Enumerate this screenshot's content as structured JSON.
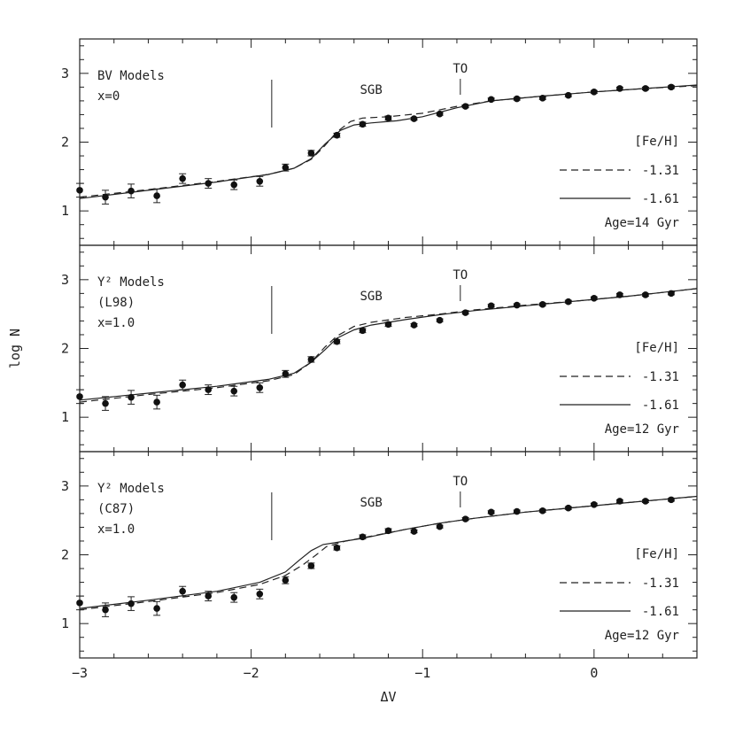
{
  "chart_data": {
    "type": "scatter",
    "xlabel": "ΔV",
    "ylabel": "log N",
    "xlim": [
      -3,
      0.6
    ],
    "ylim": [
      0.5,
      3.5
    ],
    "x_ticks": [
      "-3",
      "-2",
      "-1",
      "0"
    ],
    "y_ticks": [
      "1",
      "2",
      "3"
    ],
    "grid": false,
    "legend_title": "[Fe/H]",
    "panels": [
      {
        "model_lines": [
          "BV Models",
          "x=0"
        ],
        "sgb_label": "SGB",
        "to_label": "TO",
        "sgb_marker_x": -1.88,
        "to_marker_x": -0.78,
        "age_label": "Age=14 Gyr",
        "observed": {
          "x": [
            -3.0,
            -2.85,
            -2.7,
            -2.55,
            -2.4,
            -2.25,
            -2.1,
            -1.95,
            -1.8,
            -1.65,
            -1.5,
            -1.35,
            -1.2,
            -1.05,
            -0.9,
            -0.75,
            -0.6,
            -0.45,
            -0.3,
            -0.15,
            0.0,
            0.15,
            0.3,
            0.45
          ],
          "y": [
            1.3,
            1.2,
            1.29,
            1.22,
            1.47,
            1.4,
            1.38,
            1.43,
            1.63,
            1.84,
            2.1,
            2.26,
            2.35,
            2.34,
            2.41,
            2.52,
            2.62,
            2.63,
            2.64,
            2.68,
            2.73,
            2.78,
            2.78,
            2.8
          ],
          "yerr": [
            0.1,
            0.1,
            0.1,
            0.1,
            0.07,
            0.07,
            0.07,
            0.07,
            0.05,
            0.04,
            0.03,
            0.03,
            0.03,
            0.02,
            0.02,
            0.02,
            0.02,
            0.02,
            0.02,
            0.02,
            0.02,
            0.02,
            0.02,
            0.02
          ]
        },
        "series": [
          {
            "name": "-1.31",
            "style": "dashed",
            "x": [
              -3.0,
              -2.6,
              -2.2,
              -1.9,
              -1.75,
              -1.65,
              -1.58,
              -1.5,
              -1.42,
              -1.35,
              -1.2,
              -1.0,
              -0.8,
              -0.6,
              -0.3,
              0.0,
              0.3,
              0.6
            ],
            "y": [
              1.2,
              1.31,
              1.43,
              1.53,
              1.62,
              1.75,
              1.92,
              2.15,
              2.3,
              2.35,
              2.37,
              2.42,
              2.52,
              2.6,
              2.67,
              2.73,
              2.78,
              2.82
            ]
          },
          {
            "name": "-1.61",
            "style": "solid",
            "x": [
              -3.0,
              -2.6,
              -2.2,
              -1.9,
              -1.75,
              -1.65,
              -1.57,
              -1.48,
              -1.4,
              -1.3,
              -1.15,
              -1.0,
              -0.8,
              -0.6,
              -0.3,
              0.0,
              0.3,
              0.6
            ],
            "y": [
              1.18,
              1.3,
              1.42,
              1.53,
              1.62,
              1.76,
              1.97,
              2.17,
              2.25,
              2.28,
              2.31,
              2.37,
              2.5,
              2.6,
              2.67,
              2.73,
              2.78,
              2.83
            ]
          }
        ]
      },
      {
        "model_lines": [
          "Y² Models",
          "(L98)",
          "x=1.0"
        ],
        "sgb_label": "SGB",
        "to_label": "TO",
        "sgb_marker_x": -1.88,
        "to_marker_x": -0.78,
        "age_label": "Age=12 Gyr",
        "observed": {
          "x": [
            -3.0,
            -2.85,
            -2.7,
            -2.55,
            -2.4,
            -2.25,
            -2.1,
            -1.95,
            -1.8,
            -1.65,
            -1.5,
            -1.35,
            -1.2,
            -1.05,
            -0.9,
            -0.75,
            -0.6,
            -0.45,
            -0.3,
            -0.15,
            0.0,
            0.15,
            0.3,
            0.45
          ],
          "y": [
            1.3,
            1.2,
            1.29,
            1.22,
            1.47,
            1.4,
            1.38,
            1.43,
            1.63,
            1.84,
            2.1,
            2.26,
            2.35,
            2.34,
            2.41,
            2.52,
            2.62,
            2.63,
            2.64,
            2.68,
            2.73,
            2.78,
            2.78,
            2.8
          ],
          "yerr": [
            0.1,
            0.1,
            0.1,
            0.1,
            0.07,
            0.07,
            0.07,
            0.07,
            0.05,
            0.04,
            0.03,
            0.03,
            0.03,
            0.02,
            0.02,
            0.02,
            0.02,
            0.02,
            0.02,
            0.02,
            0.02,
            0.02,
            0.02,
            0.02
          ]
        },
        "series": [
          {
            "name": "-1.31",
            "style": "dashed",
            "x": [
              -3.0,
              -2.6,
              -2.2,
              -1.9,
              -1.75,
              -1.65,
              -1.57,
              -1.5,
              -1.4,
              -1.3,
              -1.1,
              -0.9,
              -0.7,
              -0.4,
              -0.1,
              0.2,
              0.6
            ],
            "y": [
              1.22,
              1.33,
              1.43,
              1.53,
              1.62,
              1.8,
              2.02,
              2.18,
              2.32,
              2.38,
              2.45,
              2.5,
              2.56,
              2.63,
              2.69,
              2.76,
              2.87
            ]
          },
          {
            "name": "-1.61",
            "style": "solid",
            "x": [
              -3.0,
              -2.6,
              -2.2,
              -1.9,
              -1.75,
              -1.65,
              -1.57,
              -1.5,
              -1.4,
              -1.3,
              -1.1,
              -0.9,
              -0.7,
              -0.4,
              -0.1,
              0.2,
              0.6
            ],
            "y": [
              1.25,
              1.35,
              1.45,
              1.55,
              1.64,
              1.8,
              1.98,
              2.15,
              2.27,
              2.34,
              2.42,
              2.49,
              2.55,
              2.62,
              2.69,
              2.76,
              2.87
            ]
          }
        ]
      },
      {
        "model_lines": [
          "Y² Models",
          "(C87)",
          "x=1.0"
        ],
        "sgb_label": "SGB",
        "to_label": "TO",
        "sgb_marker_x": -1.88,
        "to_marker_x": -0.78,
        "age_label": "Age=12 Gyr",
        "observed": {
          "x": [
            -3.0,
            -2.85,
            -2.7,
            -2.55,
            -2.4,
            -2.25,
            -2.1,
            -1.95,
            -1.8,
            -1.65,
            -1.5,
            -1.35,
            -1.2,
            -1.05,
            -0.9,
            -0.75,
            -0.6,
            -0.45,
            -0.3,
            -0.15,
            0.0,
            0.15,
            0.3,
            0.45
          ],
          "y": [
            1.3,
            1.2,
            1.29,
            1.22,
            1.47,
            1.4,
            1.38,
            1.43,
            1.63,
            1.84,
            2.1,
            2.26,
            2.35,
            2.34,
            2.41,
            2.52,
            2.62,
            2.63,
            2.64,
            2.68,
            2.73,
            2.78,
            2.78,
            2.8
          ],
          "yerr": [
            0.1,
            0.1,
            0.1,
            0.1,
            0.07,
            0.07,
            0.07,
            0.07,
            0.05,
            0.04,
            0.03,
            0.03,
            0.03,
            0.02,
            0.02,
            0.02,
            0.02,
            0.02,
            0.02,
            0.02,
            0.02,
            0.02,
            0.02,
            0.02
          ]
        },
        "series": [
          {
            "name": "-1.31",
            "style": "dashed",
            "x": [
              -3.0,
              -2.6,
              -2.2,
              -1.95,
              -1.8,
              -1.7,
              -1.62,
              -1.56,
              -1.45,
              -1.3,
              -1.1,
              -0.9,
              -0.7,
              -0.4,
              -0.1,
              0.2,
              0.6
            ],
            "y": [
              1.2,
              1.32,
              1.45,
              1.57,
              1.7,
              1.85,
              2.0,
              2.12,
              2.2,
              2.27,
              2.37,
              2.46,
              2.53,
              2.62,
              2.69,
              2.76,
              2.85
            ]
          },
          {
            "name": "-1.61",
            "style": "solid",
            "x": [
              -3.0,
              -2.6,
              -2.2,
              -1.95,
              -1.8,
              -1.72,
              -1.65,
              -1.58,
              -1.5,
              -1.35,
              -1.1,
              -0.9,
              -0.7,
              -0.4,
              -0.1,
              0.2,
              0.6
            ],
            "y": [
              1.22,
              1.34,
              1.47,
              1.6,
              1.75,
              1.92,
              2.06,
              2.15,
              2.18,
              2.24,
              2.37,
              2.46,
              2.53,
              2.62,
              2.69,
              2.76,
              2.85
            ]
          }
        ]
      }
    ]
  }
}
